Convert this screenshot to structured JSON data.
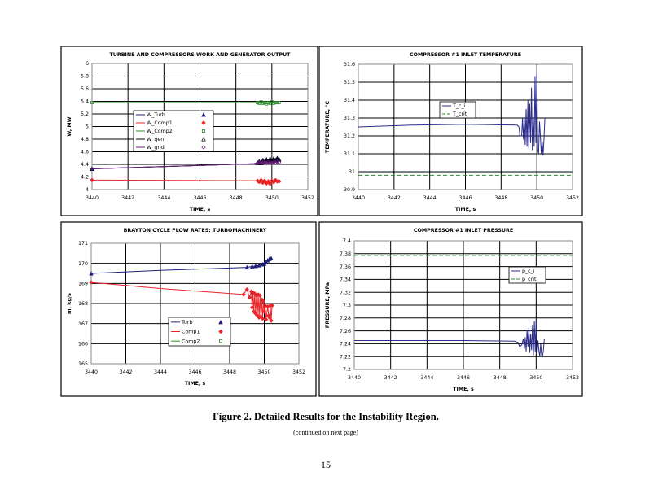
{
  "figure": {
    "caption": "Figure 2. Detailed Results for the Instability Region.",
    "continued": "(continued on next page)",
    "page_number": "15"
  },
  "chart_data": [
    {
      "type": "line",
      "title": "TURBINE AND COMPRESSORS WORK AND GENERATOR OUTPUT",
      "xlabel": "TIME, s",
      "ylabel": "W, MW",
      "xlim": [
        3440,
        3452
      ],
      "ylim": [
        4,
        6
      ],
      "xticks": [
        "3440",
        "3442",
        "3444",
        "3446",
        "3448",
        "3450",
        "3452"
      ],
      "yticks": [
        "4",
        "4.2",
        "4.4",
        "4.6",
        "4.8",
        "5",
        "5.2",
        "5.4",
        "5.6",
        "5.8",
        "6"
      ],
      "grid": true,
      "legend": "center-left",
      "series": [
        {
          "name": "W_Turb",
          "color": "#1f1f7a",
          "marker": "triangle",
          "x": [
            3440,
            3449,
            3449.2,
            3449.3,
            3449.4,
            3449.5,
            3449.6,
            3449.7,
            3449.8,
            3449.9,
            3450,
            3450.1,
            3450.2,
            3450.3,
            3450.4
          ],
          "y": [
            4.33,
            4.41,
            4.42,
            4.45,
            4.43,
            4.47,
            4.44,
            4.48,
            4.45,
            4.49,
            4.46,
            4.48,
            4.47,
            4.5,
            4.48
          ]
        },
        {
          "name": "W_Comp1",
          "color": "#e8262a",
          "marker": "diamond",
          "x": [
            3440,
            3449,
            3449.2,
            3449.3,
            3449.4,
            3449.5,
            3449.6,
            3449.7,
            3449.8,
            3449.9,
            3450,
            3450.1,
            3450.2,
            3450.3,
            3450.4
          ],
          "y": [
            4.15,
            4.14,
            4.14,
            4.12,
            4.15,
            4.11,
            4.14,
            4.1,
            4.13,
            4.09,
            4.14,
            4.12,
            4.15,
            4.13,
            4.13
          ]
        },
        {
          "name": "W_Comp2",
          "color": "#2e8b2e",
          "marker": "square",
          "x": [
            3440,
            3449,
            3449.2,
            3449.3,
            3449.4,
            3449.5,
            3449.6,
            3449.7,
            3449.8,
            3449.9,
            3450,
            3450.1,
            3450.2,
            3450.3,
            3450.4
          ],
          "y": [
            5.38,
            5.38,
            5.38,
            5.37,
            5.39,
            5.37,
            5.38,
            5.36,
            5.38,
            5.37,
            5.39,
            5.37,
            5.38,
            5.38,
            5.38
          ]
        },
        {
          "name": "W_gen",
          "color": "#000000",
          "marker": "triangle-open",
          "x": [
            3440,
            3449,
            3449.2,
            3449.3,
            3449.4,
            3449.5,
            3449.6,
            3449.7,
            3449.8,
            3449.9,
            3450,
            3450.1,
            3450.2,
            3450.3,
            3450.4
          ],
          "y": [
            4.33,
            4.41,
            4.43,
            4.44,
            4.42,
            4.46,
            4.44,
            4.47,
            4.45,
            4.48,
            4.46,
            4.49,
            4.47,
            4.49,
            4.48
          ]
        },
        {
          "name": "W_grid",
          "color": "#6a1b7a",
          "marker": "diamond-open",
          "x": [
            3440,
            3449,
            3449.2,
            3449.3,
            3449.4,
            3449.5,
            3449.6,
            3449.7,
            3449.8,
            3449.9,
            3450,
            3450.1,
            3450.2,
            3450.3,
            3450.4
          ],
          "y": [
            4.33,
            4.41,
            4.42,
            4.43,
            4.42,
            4.44,
            4.43,
            4.42,
            4.44,
            4.43,
            4.42,
            4.43,
            4.43,
            4.44,
            4.43
          ]
        }
      ]
    },
    {
      "type": "line",
      "title": "COMPRESSOR #1 INLET TEMPERATURE",
      "xlabel": "TIME, s",
      "ylabel": "TEMPERATURE, °C",
      "xlim": [
        3440,
        3452
      ],
      "ylim": [
        30.9,
        31.6
      ],
      "xticks": [
        "3440",
        "3442",
        "3444",
        "3446",
        "3448",
        "3450",
        "3452"
      ],
      "yticks": [
        "30.9",
        "31",
        "31.1",
        "31.2",
        "31.3",
        "31.4",
        "31.5",
        "31.6"
      ],
      "grid": true,
      "legend": "center",
      "series": [
        {
          "name": "T_c_i",
          "color": "#2b2b8c",
          "x": [
            3440,
            3443,
            3446,
            3448.9,
            3449,
            3449.05,
            3449.15,
            3449.2,
            3449.25,
            3449.3,
            3449.35,
            3449.4,
            3449.45,
            3449.5,
            3449.55,
            3449.6,
            3449.65,
            3449.7,
            3449.75,
            3449.8,
            3449.85,
            3449.9,
            3449.95,
            3450,
            3450.05,
            3450.1,
            3450.15,
            3450.2,
            3450.25,
            3450.3,
            3450.35,
            3450.4,
            3450.45
          ],
          "y": [
            31.25,
            31.26,
            31.265,
            31.26,
            31.25,
            31.2,
            31.2,
            31.3,
            31.18,
            31.3,
            31.15,
            31.35,
            31.14,
            31.4,
            31.13,
            31.38,
            31.16,
            31.47,
            31.12,
            31.3,
            31.14,
            31.53,
            31.16,
            31.56,
            31.12,
            31.1,
            31.28,
            31.2,
            31.1,
            31.17,
            31.09,
            31.18,
            31.3
          ]
        },
        {
          "name": "T_crit",
          "color": "#2e8b2e",
          "dash": true,
          "x": [
            3440,
            3452
          ],
          "y": [
            30.98,
            30.98
          ]
        }
      ]
    },
    {
      "type": "line",
      "title": "BRAYTON CYCLE FLOW RATES: TURBOMACHINERY",
      "xlabel": "TIME, s",
      "ylabel": "m, kg/s",
      "xlim": [
        3440,
        3452
      ],
      "ylim": [
        165,
        171
      ],
      "xticks": [
        "3440",
        "3442",
        "3444",
        "3446",
        "3448",
        "3450",
        "3452"
      ],
      "yticks": [
        "165",
        "166",
        "167",
        "168",
        "169",
        "170",
        "171"
      ],
      "grid": true,
      "legend": "bottom-center",
      "series": [
        {
          "name": "Turb",
          "color": "#1f1f7a",
          "marker": "triangle",
          "x": [
            3440,
            3444,
            3449,
            3449.3,
            3449.5,
            3449.7,
            3449.9,
            3450,
            3450.1,
            3450.2,
            3450.3,
            3450.4
          ],
          "y": [
            169.5,
            169.65,
            169.8,
            169.85,
            169.87,
            169.9,
            169.95,
            169.98,
            170.05,
            170.15,
            170.22,
            170.25
          ]
        },
        {
          "name": "Comp1",
          "color": "#e8262a",
          "marker": "diamond",
          "x": [
            3440,
            3444,
            3448.8,
            3449,
            3449.15,
            3449.25,
            3449.3,
            3449.35,
            3449.4,
            3449.45,
            3449.5,
            3449.55,
            3449.6,
            3449.65,
            3449.7,
            3449.75,
            3449.8,
            3449.85,
            3449.9,
            3449.95,
            3450,
            3450.05,
            3450.1,
            3450.2,
            3450.25,
            3450.3,
            3450.35,
            3450.4,
            3450.45
          ],
          "y": [
            169.05,
            168.75,
            168.45,
            168.7,
            168.3,
            168.6,
            167.8,
            168.55,
            167.6,
            168.5,
            167.5,
            168.4,
            167.4,
            168.45,
            167.3,
            168.4,
            167.35,
            168.2,
            167.25,
            168.1,
            167.6,
            167.9,
            167.2,
            167.85,
            167.4,
            167.3,
            167.9,
            167.15,
            167.9
          ]
        },
        {
          "name": "Comp2",
          "color": "#2e8b2e",
          "marker": "square",
          "x": [],
          "y": []
        }
      ]
    },
    {
      "type": "line",
      "title": "COMPRESSOR #1 INLET PRESSURE",
      "xlabel": "TIME, s",
      "ylabel": "PRESSURE, MPa",
      "xlim": [
        3440,
        3452
      ],
      "ylim": [
        7.2,
        7.4
      ],
      "xticks": [
        "3440",
        "3442",
        "3444",
        "3446",
        "3448",
        "3450",
        "3452"
      ],
      "yticks": [
        "7.2",
        "7.22",
        "7.24",
        "7.26",
        "7.28",
        "7.3",
        "7.32",
        "7.34",
        "7.36",
        "7.38",
        "7.4"
      ],
      "grid": true,
      "legend": "right",
      "series": [
        {
          "name": "p_c_i",
          "color": "#2b2b8c",
          "x": [
            3440,
            3446,
            3448.8,
            3449,
            3449.1,
            3449.2,
            3449.3,
            3449.35,
            3449.4,
            3449.45,
            3449.5,
            3449.55,
            3449.6,
            3449.65,
            3449.7,
            3449.75,
            3449.8,
            3449.85,
            3449.9,
            3449.95,
            3450,
            3450.05,
            3450.1,
            3450.15,
            3450.2,
            3450.25,
            3450.3,
            3450.35,
            3450.4,
            3450.45
          ],
          "y": [
            7.245,
            7.245,
            7.244,
            7.242,
            7.235,
            7.238,
            7.248,
            7.232,
            7.25,
            7.228,
            7.262,
            7.235,
            7.265,
            7.226,
            7.255,
            7.23,
            7.268,
            7.222,
            7.275,
            7.228,
            7.278,
            7.225,
            7.245,
            7.23,
            7.22,
            7.24,
            7.222,
            7.22,
            7.23,
            7.248
          ]
        },
        {
          "name": "p_crit",
          "color": "#2e8b2e",
          "dash": true,
          "x": [
            3440,
            3452
          ],
          "y": [
            7.377,
            7.377
          ]
        }
      ]
    }
  ]
}
